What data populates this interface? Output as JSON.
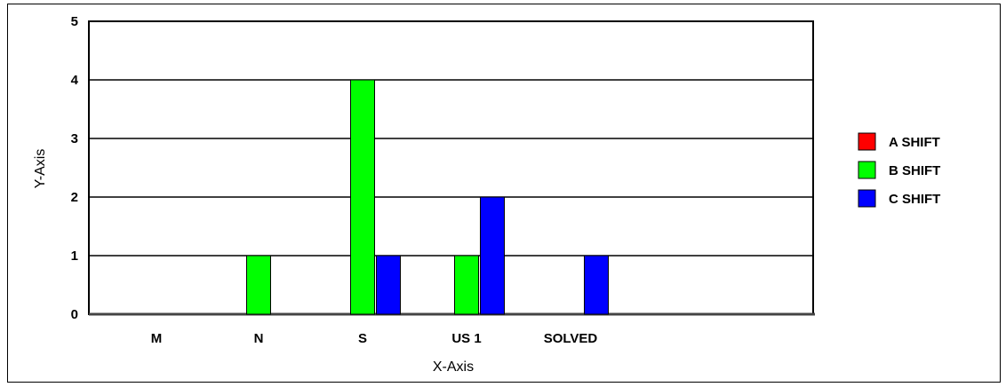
{
  "chart_data": {
    "type": "bar",
    "categories": [
      "M",
      "N",
      "S",
      "US 1",
      "SOLVED"
    ],
    "series": [
      {
        "name": "A SHIFT",
        "color": "#ff0000",
        "values": [
          0,
          0,
          0,
          0,
          0
        ]
      },
      {
        "name": "B SHIFT",
        "color": "#00ff00",
        "values": [
          0,
          1,
          4,
          1,
          0
        ]
      },
      {
        "name": "C SHIFT",
        "color": "#0000ff",
        "values": [
          0,
          0,
          1,
          2,
          1
        ]
      }
    ],
    "yticks": [
      "0",
      "1",
      "2",
      "3",
      "4",
      "5"
    ],
    "xlabel": "X-Axis",
    "ylabel": "Y-Axis",
    "ylim": [
      0,
      5
    ],
    "grid": true,
    "legend": "right"
  }
}
